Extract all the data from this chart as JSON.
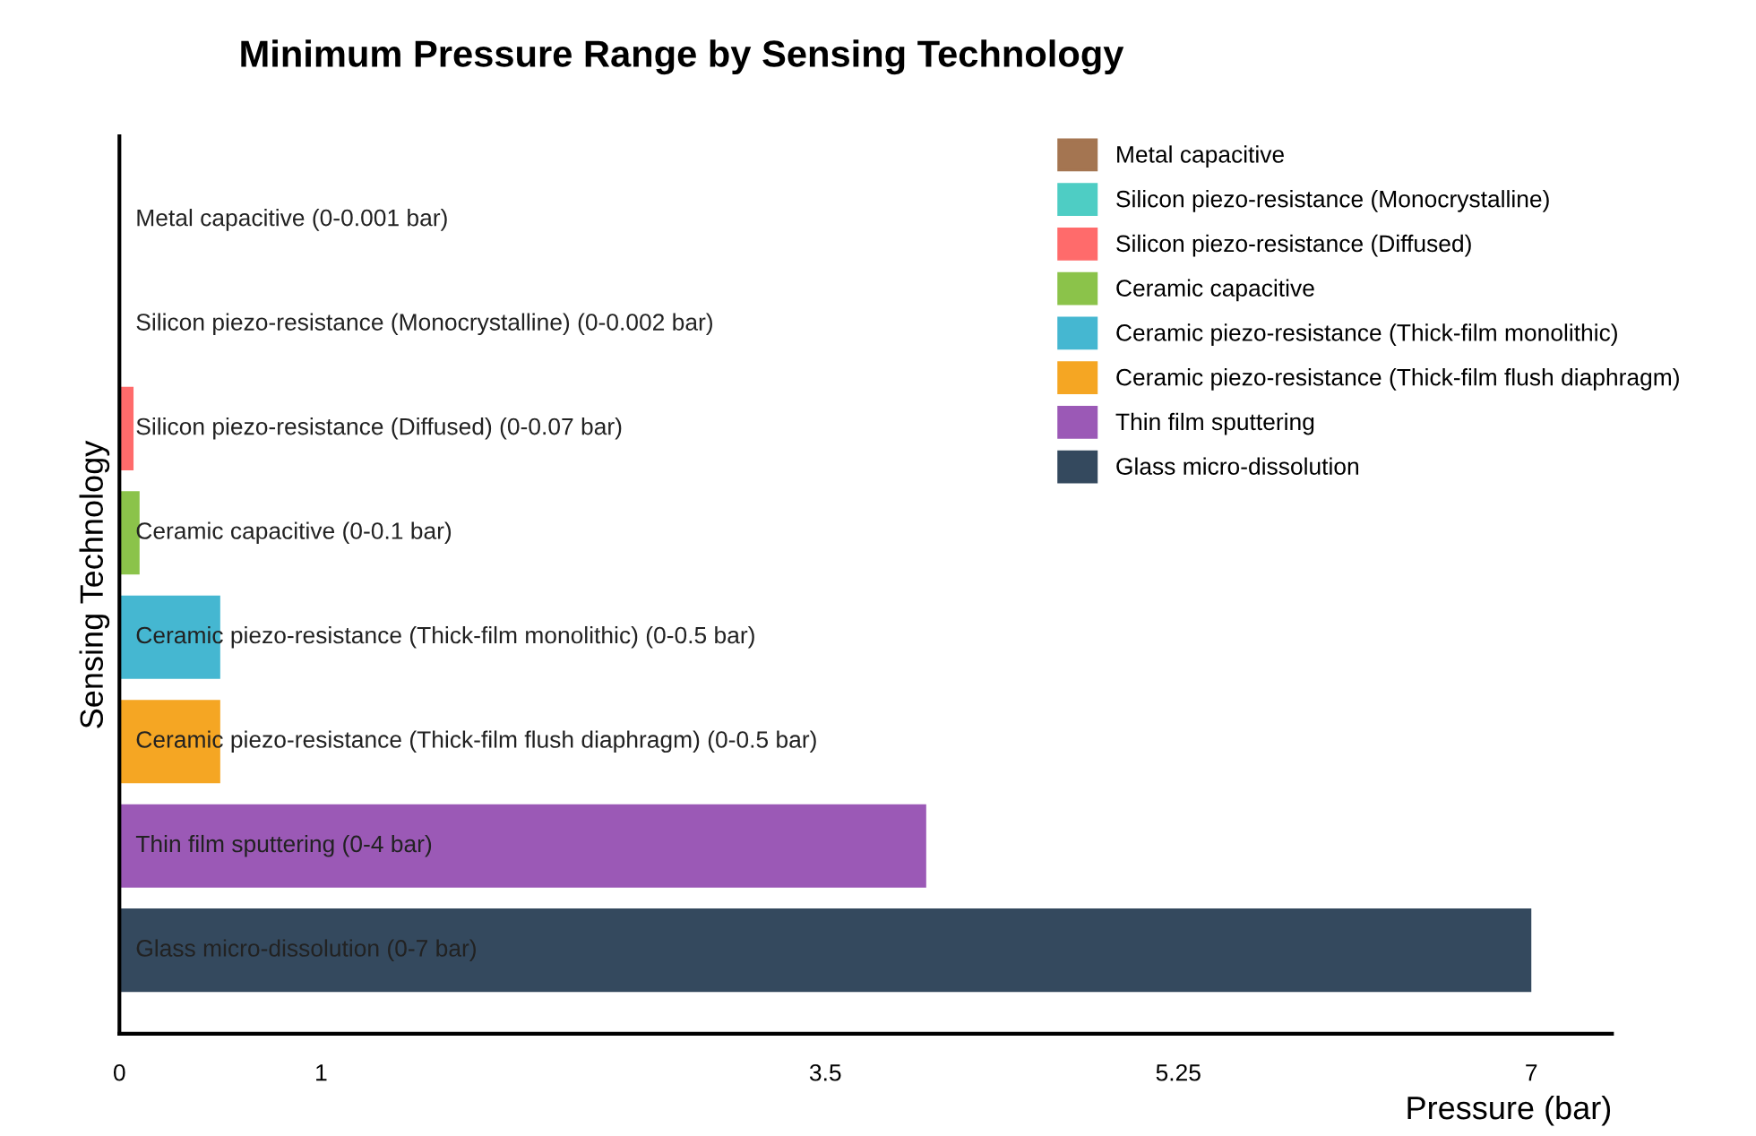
{
  "chart_data": {
    "type": "bar",
    "orientation": "horizontal",
    "stacked": true,
    "title": "Minimum Pressure Range by Sensing Technology",
    "xlabel": "Pressure (bar)",
    "ylabel": "Sensing Technology",
    "categories": [
      "Metal capacitive (0-0.001 bar)",
      "Silicon piezo-resistance (Monocrystalline) (0-0.002 bar)",
      "Silicon piezo-resistance (Diffused) (0-0.07 bar)",
      "Ceramic capacitive (0-0.1 bar)",
      "Ceramic piezo-resistance (Thick-film monolithic) (0-0.5 bar)",
      "Ceramic piezo-resistance (Thick-film flush diaphragm) (0-0.5 bar)",
      "Thin film sputtering (0-4 bar)",
      "Glass micro-dissolution (0-7 bar)"
    ],
    "series": [
      {
        "name": "Metal capacitive",
        "color": "#a47551",
        "values": [
          0.001,
          null,
          null,
          null,
          null,
          null,
          null,
          null
        ]
      },
      {
        "name": "Silicon piezo-resistance (Monocrystalline)",
        "color": "#4ecdc4",
        "values": [
          null,
          0.002,
          null,
          null,
          null,
          null,
          null,
          null
        ]
      },
      {
        "name": "Silicon piezo-resistance (Diffused)",
        "color": "#ff6b6b",
        "values": [
          null,
          null,
          0.07,
          null,
          null,
          null,
          null,
          null
        ]
      },
      {
        "name": "Ceramic capacitive",
        "color": "#8bc34a",
        "values": [
          null,
          null,
          null,
          0.1,
          null,
          null,
          null,
          null
        ]
      },
      {
        "name": "Ceramic piezo-resistance (Thick-film monolithic)",
        "color": "#45b7d1",
        "values": [
          null,
          null,
          null,
          null,
          0.5,
          null,
          null,
          null
        ]
      },
      {
        "name": "Ceramic piezo-resistance (Thick-film flush diaphragm)",
        "color": "#f5a623",
        "values": [
          null,
          null,
          null,
          null,
          null,
          0.5,
          null,
          null
        ]
      },
      {
        "name": "Thin film sputtering",
        "color": "#9b59b6",
        "values": [
          null,
          null,
          null,
          null,
          null,
          null,
          4,
          null
        ]
      },
      {
        "name": "Glass micro-dissolution",
        "color": "#34495e",
        "values": [
          null,
          null,
          null,
          null,
          null,
          null,
          null,
          7
        ]
      }
    ],
    "xlim": [
      0,
      7.4
    ],
    "xticks": [
      0,
      1,
      3.5,
      5.25,
      7
    ],
    "grid": false,
    "legend": "top right"
  }
}
